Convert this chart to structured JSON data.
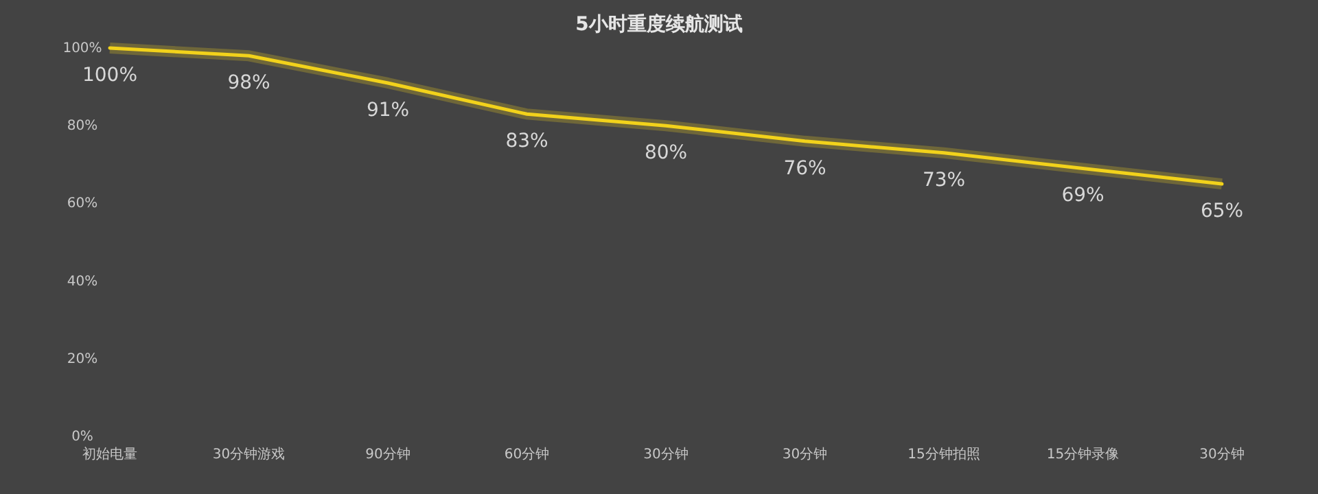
{
  "chart_data": {
    "type": "line",
    "title": "5小时重度续航测试",
    "categories": [
      "初始电量",
      "30分钟游戏",
      "90分钟",
      "60分钟",
      "30分钟",
      "30分钟",
      "15分钟拍照",
      "15分钟录像",
      "30分钟"
    ],
    "series": [
      {
        "color": "#f2d21b",
        "values": [
          100,
          98,
          91,
          83,
          80,
          76,
          73,
          69,
          65
        ],
        "value_labels": [
          "100%",
          "98%",
          "91%",
          "83%",
          "80%",
          "76%",
          "73%",
          "69%",
          "65%"
        ]
      }
    ],
    "ylim": [
      0,
      100
    ],
    "yticks": [
      {
        "value": 0,
        "label": "0%"
      },
      {
        "value": 20,
        "label": "20%"
      },
      {
        "value": 40,
        "label": "40%"
      },
      {
        "value": 60,
        "label": "60%"
      },
      {
        "value": 80,
        "label": "80%"
      },
      {
        "value": 100,
        "label": "100%"
      }
    ],
    "grid": false,
    "marker": "none",
    "line_style": "solid"
  }
}
